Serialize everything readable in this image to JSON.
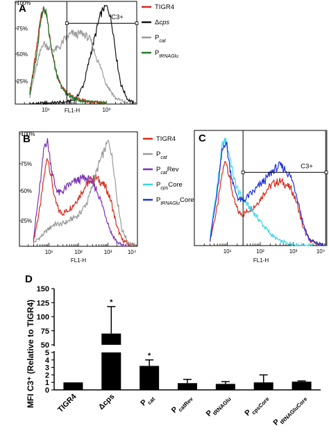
{
  "chart_data": [
    {
      "panel": "A",
      "type": "line",
      "x_scale": "log",
      "xlim": [
        1,
        10000
      ],
      "ylim": [
        0,
        100
      ],
      "xlabel": "FL1-H",
      "y_ticks": [
        "25%",
        "50%",
        "75%",
        "100%"
      ],
      "x_ticks": [
        "10¹",
        "10³"
      ],
      "gate_label": "C3+",
      "gate_x": [
        50,
        10000
      ],
      "gate_level": 82,
      "legend_position": "right",
      "series": [
        {
          "name": "TIGR4",
          "color": "#d62a1a",
          "x": [
            3,
            5,
            7,
            9,
            11,
            13,
            16,
            20,
            25,
            35,
            50,
            80,
            150,
            300,
            1000
          ],
          "values": [
            12,
            55,
            92,
            96,
            88,
            72,
            55,
            40,
            28,
            18,
            12,
            7,
            4,
            2,
            1
          ]
        },
        {
          "name": "Δcps",
          "color": "#111111",
          "x": [
            3,
            10,
            50,
            100,
            180,
            300,
            450,
            600,
            800,
            1000,
            1200,
            1600,
            2200,
            3000,
            5000,
            8000
          ],
          "values": [
            0,
            1,
            2,
            5,
            20,
            50,
            72,
            88,
            97,
            100,
            95,
            78,
            45,
            20,
            5,
            1
          ]
        },
        {
          "name": "Pcat",
          "color": "#999999",
          "x": [
            3,
            5,
            8,
            12,
            20,
            30,
            40,
            60,
            80,
            100,
            150,
            200,
            300,
            500,
            700,
            1000,
            2000,
            5000
          ],
          "values": [
            8,
            38,
            62,
            58,
            55,
            58,
            65,
            70,
            72,
            70,
            72,
            70,
            65,
            45,
            35,
            20,
            6,
            1
          ]
        },
        {
          "name": "PtRNAGlu",
          "color": "#1f7a2e",
          "x": [
            3,
            5,
            7,
            9,
            11,
            13,
            16,
            20,
            25,
            35,
            50,
            80,
            150,
            300,
            1000
          ],
          "values": [
            10,
            50,
            88,
            97,
            90,
            73,
            54,
            38,
            26,
            16,
            10,
            6,
            3,
            2,
            1
          ]
        }
      ]
    },
    {
      "panel": "B",
      "type": "line",
      "x_scale": "log",
      "xlim": [
        1,
        10000
      ],
      "ylim": [
        0,
        100
      ],
      "xlabel": "FL1-H",
      "y_ticks": [
        "25%",
        "50%",
        "75%",
        "100%"
      ],
      "x_ticks": [
        "10¹",
        "10²",
        "10³",
        "10⁴"
      ],
      "legend_position": "right",
      "series": [
        {
          "name": "TIGR4",
          "color": "#d62a1a",
          "x": [
            3,
            5,
            7,
            9,
            12,
            16,
            22,
            30,
            45,
            70,
            100,
            150,
            250,
            400,
            600,
            900,
            1300,
            2000,
            3000,
            5000,
            8000
          ],
          "values": [
            5,
            35,
            65,
            82,
            62,
            42,
            32,
            30,
            33,
            38,
            44,
            52,
            60,
            62,
            58,
            52,
            40,
            18,
            6,
            2,
            1
          ]
        },
        {
          "name": "Pcat",
          "color": "#999999",
          "x": [
            3,
            6,
            10,
            15,
            25,
            40,
            70,
            100,
            200,
            300,
            500,
            800,
            1000,
            1200,
            1600,
            2000,
            3000,
            5000,
            8000
          ],
          "values": [
            3,
            10,
            16,
            20,
            20,
            22,
            26,
            28,
            40,
            55,
            75,
            88,
            95,
            90,
            70,
            45,
            15,
            3,
            1
          ]
        },
        {
          "name": "PcatRev",
          "color": "#7b2fb5",
          "x": [
            3,
            5,
            7,
            9,
            12,
            16,
            22,
            30,
            45,
            70,
            100,
            150,
            250,
            400,
            600,
            900,
            1300,
            2000,
            3000,
            5000
          ],
          "values": [
            8,
            55,
            92,
            95,
            72,
            55,
            48,
            50,
            55,
            58,
            60,
            62,
            60,
            52,
            40,
            25,
            12,
            4,
            1,
            0
          ]
        },
        {
          "name": "PcpsCore",
          "color": "#3cd6e8",
          "x": [],
          "values": []
        },
        {
          "name": "PtRNAGluCore",
          "color": "#1e2fe0",
          "x": [],
          "values": []
        }
      ]
    },
    {
      "panel": "C",
      "type": "line",
      "x_scale": "log",
      "xlim": [
        1,
        10000
      ],
      "ylim": [
        0,
        100
      ],
      "xlabel": "FL1-H",
      "x_ticks": [
        "10¹",
        "10²",
        "10³",
        "10⁴"
      ],
      "gate_label": "C3+",
      "gate_x": [
        30,
        10000
      ],
      "gate_level": 66,
      "series": [
        {
          "name": "TIGR4",
          "color": "#d62a1a",
          "x": [
            3,
            5,
            7,
            9,
            12,
            16,
            22,
            30,
            45,
            70,
            100,
            150,
            250,
            400,
            600,
            900,
            1300,
            2000,
            3000,
            5000,
            8000
          ],
          "values": [
            5,
            35,
            65,
            78,
            60,
            40,
            30,
            28,
            32,
            36,
            42,
            50,
            56,
            58,
            55,
            50,
            38,
            16,
            5,
            2,
            1
          ]
        },
        {
          "name": "PcpsCore",
          "color": "#3cd6e8",
          "x": [
            3,
            5,
            7,
            9,
            12,
            16,
            22,
            30,
            45,
            70,
            100,
            150,
            250,
            400,
            700,
            1200,
            2000,
            4000
          ],
          "values": [
            8,
            55,
            90,
            95,
            80,
            60,
            48,
            42,
            35,
            28,
            22,
            15,
            8,
            4,
            2,
            1,
            0,
            0
          ]
        },
        {
          "name": "PtRNAGluCore",
          "color": "#1e2fe0",
          "x": [
            3,
            5,
            7,
            9,
            12,
            16,
            22,
            30,
            45,
            70,
            100,
            150,
            250,
            400,
            600,
            900,
            1300,
            2000,
            3000,
            5000,
            8000
          ],
          "values": [
            6,
            48,
            85,
            95,
            70,
            52,
            42,
            40,
            45,
            50,
            55,
            60,
            68,
            72,
            68,
            60,
            45,
            20,
            6,
            2,
            1
          ]
        }
      ]
    },
    {
      "panel": "D",
      "type": "bar",
      "ylabel": "MFI C3⁺ (Relative to TIGR4)",
      "categories": [
        "TIGR4",
        "Δcps",
        "Pcat",
        "PcatRev",
        "PtRNAGlu",
        "PcpsCore",
        "PtRNAGluCore"
      ],
      "category_labels": [
        {
          "main": "TIGR4",
          "sub": ""
        },
        {
          "main": "Δcps",
          "sub": ""
        },
        {
          "main": "P",
          "sub": "cat"
        },
        {
          "main": "P",
          "sub": "catRev"
        },
        {
          "main": "P",
          "sub": "tRNAGlu"
        },
        {
          "main": "P",
          "sub": "cpsCore"
        },
        {
          "main": "P",
          "sub": "tRNAGluCore"
        }
      ],
      "values": [
        1,
        70,
        3.2,
        0.9,
        0.8,
        1.0,
        1.1
      ],
      "errors": [
        0,
        48,
        0.8,
        0.5,
        0.3,
        1.0,
        0.1
      ],
      "significant": [
        "",
        "*",
        "*",
        "",
        "",
        "",
        ""
      ],
      "broken_axis": {
        "lower": [
          0,
          5
        ],
        "upper": [
          50,
          150
        ]
      },
      "y_ticks_lower": [
        0,
        1,
        2,
        3,
        4,
        5
      ],
      "y_ticks_upper": [
        50,
        75,
        100,
        125,
        150
      ],
      "bar_color": "#000000"
    }
  ]
}
